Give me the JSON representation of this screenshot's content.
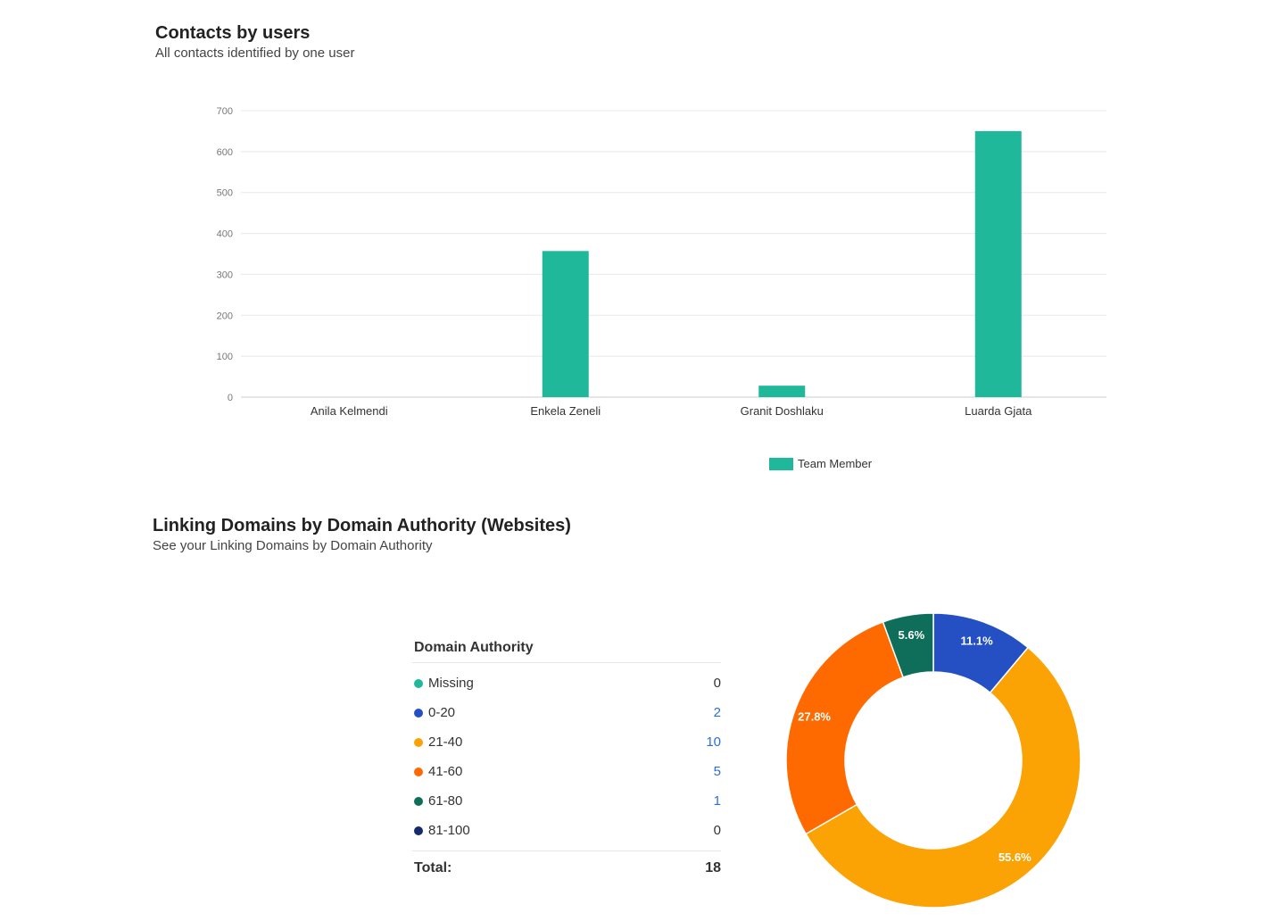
{
  "contacts_chart": {
    "title": "Contacts by users",
    "subtitle": "All contacts identified by one user",
    "legend": "Team Member"
  },
  "domains_chart": {
    "title": "Linking Domains by Domain Authority (Websites)",
    "subtitle": "See your Linking Domains by Domain Authority",
    "table_title": "Domain Authority",
    "rows": [
      {
        "label": "Missing",
        "value": "0"
      },
      {
        "label": "0-20",
        "value": "2"
      },
      {
        "label": "21-40",
        "value": "10"
      },
      {
        "label": "41-60",
        "value": "5"
      },
      {
        "label": "61-80",
        "value": "1"
      },
      {
        "label": "81-100",
        "value": "0"
      }
    ],
    "total_label": "Total:",
    "total_value": "18"
  },
  "chart_data": [
    {
      "type": "bar",
      "title": "Contacts by users",
      "subtitle": "All contacts identified by one user",
      "categories": [
        "Anila Kelmendi",
        "Enkela Zeneli",
        "Granit Doshlaku",
        "Luarda Gjata"
      ],
      "series": [
        {
          "name": "Team Member",
          "values": [
            0,
            357,
            28,
            650
          ],
          "color": "#1fb89a"
        }
      ],
      "ylim": [
        0,
        700
      ],
      "yticks": [
        0,
        100,
        200,
        300,
        400,
        500,
        600,
        700
      ],
      "grid": true,
      "legend": "bottom"
    },
    {
      "type": "pie",
      "donut": true,
      "title": "Linking Domains by Domain Authority (Websites)",
      "subtitle": "See your Linking Domains by Domain Authority",
      "labels": [
        "Missing",
        "0-20",
        "21-40",
        "41-60",
        "61-80",
        "81-100"
      ],
      "values": [
        0,
        2,
        10,
        5,
        1,
        0
      ],
      "percent_labels": [
        "",
        "11.1%",
        "55.6%",
        "27.8%",
        "5.6%",
        ""
      ],
      "colors": [
        "#1fb89a",
        "#2450c4",
        "#fba205",
        "#ff6a00",
        "#0f6e5a",
        "#142a6b"
      ],
      "legend": "left"
    }
  ]
}
